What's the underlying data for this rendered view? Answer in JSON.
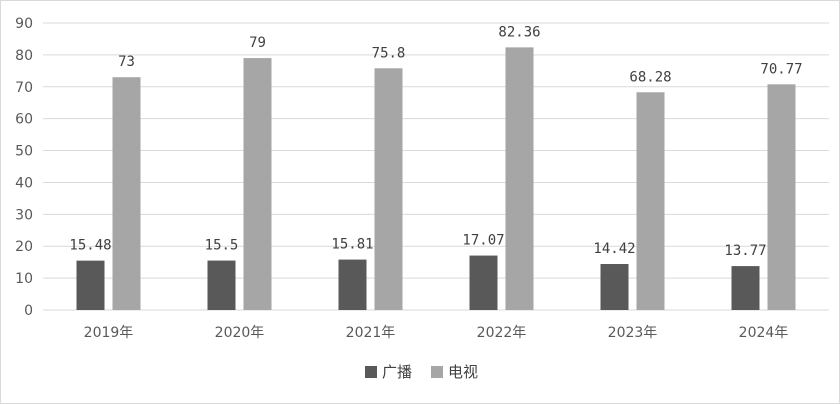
{
  "chart_data": {
    "type": "bar",
    "categories": [
      "2019年",
      "2020年",
      "2021年",
      "2022年",
      "2023年",
      "2024年"
    ],
    "series": [
      {
        "name": "广播",
        "color": "#595959",
        "values": [
          15.48,
          15.5,
          15.81,
          17.07,
          14.42,
          13.77
        ],
        "labels": [
          "15.48",
          "15.5",
          "15.81",
          "17.07",
          "14.42",
          "13.77"
        ]
      },
      {
        "name": "电视",
        "color": "#a6a6a6",
        "values": [
          73,
          79,
          75.8,
          82.36,
          68.28,
          70.77
        ],
        "labels": [
          "73",
          "79",
          "75.8",
          "82.36",
          "68.28",
          "70.77"
        ]
      }
    ],
    "yticks": [
      "0",
      "10",
      "20",
      "30",
      "40",
      "50",
      "60",
      "70",
      "80",
      "90"
    ],
    "ylim": [
      0,
      90
    ],
    "grid": true,
    "legend_position": "bottom-center"
  }
}
